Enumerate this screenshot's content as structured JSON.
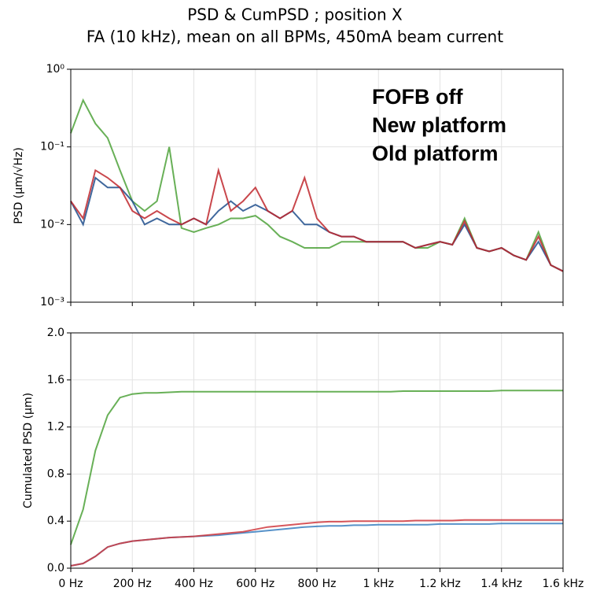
{
  "chart_data": [
    {
      "type": "line",
      "title": "PSD & CumPSD ; position X",
      "subtitle": "FA (10 kHz), mean on all BPMs, 450mA beam current",
      "ylabel": "PSD (µm/√Hz)",
      "log_y": true,
      "grid": true,
      "legend": "upper right",
      "xlim": [
        0,
        1600
      ],
      "ylim": [
        0.001,
        1
      ],
      "yticks": [
        {
          "value": 0.001,
          "label": "10⁻³"
        },
        {
          "value": 0.01,
          "label": "10⁻²"
        },
        {
          "value": 0.1,
          "label": "10⁻¹"
        },
        {
          "value": 1,
          "label": "10⁰"
        }
      ],
      "x": [
        0,
        40,
        80,
        120,
        160,
        200,
        240,
        280,
        320,
        360,
        400,
        440,
        480,
        520,
        560,
        600,
        640,
        680,
        720,
        760,
        800,
        840,
        880,
        920,
        960,
        1000,
        1040,
        1080,
        1120,
        1160,
        1200,
        1240,
        1280,
        1320,
        1360,
        1400,
        1440,
        1480,
        1520,
        1560,
        1600
      ],
      "series": [
        {
          "name": "FOFB off",
          "color": "#4ea23a",
          "values": [
            0.15,
            0.4,
            0.2,
            0.13,
            0.05,
            0.02,
            0.015,
            0.02,
            0.1,
            0.009,
            0.008,
            0.009,
            0.01,
            0.012,
            0.012,
            0.013,
            0.01,
            0.007,
            0.006,
            0.005,
            0.005,
            0.005,
            0.006,
            0.006,
            0.006,
            0.006,
            0.006,
            0.006,
            0.005,
            0.005,
            0.006,
            0.0055,
            0.012,
            0.005,
            0.0045,
            0.005,
            0.004,
            0.0035,
            0.008,
            0.003,
            0.0025
          ]
        },
        {
          "name": "New platform",
          "color": "#1f4e8c",
          "values": [
            0.02,
            0.01,
            0.04,
            0.03,
            0.03,
            0.02,
            0.01,
            0.012,
            0.01,
            0.01,
            0.012,
            0.01,
            0.015,
            0.02,
            0.015,
            0.018,
            0.015,
            0.012,
            0.015,
            0.01,
            0.01,
            0.008,
            0.007,
            0.007,
            0.006,
            0.006,
            0.006,
            0.006,
            0.005,
            0.0055,
            0.006,
            0.0055,
            0.01,
            0.005,
            0.0045,
            0.005,
            0.004,
            0.0035,
            0.006,
            0.003,
            0.0025
          ]
        },
        {
          "name": "Old platform",
          "color": "#c0272d",
          "values": [
            0.02,
            0.012,
            0.05,
            0.04,
            0.03,
            0.015,
            0.012,
            0.015,
            0.012,
            0.01,
            0.012,
            0.01,
            0.05,
            0.015,
            0.02,
            0.03,
            0.015,
            0.012,
            0.015,
            0.04,
            0.012,
            0.008,
            0.007,
            0.007,
            0.006,
            0.006,
            0.006,
            0.006,
            0.005,
            0.0055,
            0.006,
            0.0055,
            0.011,
            0.005,
            0.0045,
            0.005,
            0.004,
            0.0035,
            0.007,
            0.003,
            0.0025
          ]
        }
      ]
    },
    {
      "type": "line",
      "ylabel": "Cumulated PSD (µm)",
      "grid": true,
      "xlim": [
        0,
        1600
      ],
      "ylim": [
        0,
        2
      ],
      "xticks": [
        {
          "value": 0,
          "label": "0 Hz"
        },
        {
          "value": 200,
          "label": "200 Hz"
        },
        {
          "value": 400,
          "label": "400 Hz"
        },
        {
          "value": 600,
          "label": "600 Hz"
        },
        {
          "value": 800,
          "label": "800 Hz"
        },
        {
          "value": 1000,
          "label": "1 kHz"
        },
        {
          "value": 1200,
          "label": "1.2 kHz"
        },
        {
          "value": 1400,
          "label": "1.4 kHz"
        },
        {
          "value": 1600,
          "label": "1.6 kHz"
        }
      ],
      "yticks": [
        {
          "value": 0,
          "label": "0.0"
        },
        0.4,
        0.8,
        1.2,
        1.6,
        {
          "value": 2,
          "label": "2.0"
        }
      ],
      "x": [
        0,
        40,
        80,
        120,
        160,
        200,
        240,
        280,
        320,
        360,
        400,
        440,
        480,
        520,
        560,
        600,
        640,
        680,
        720,
        760,
        800,
        840,
        880,
        920,
        960,
        1000,
        1040,
        1080,
        1120,
        1160,
        1200,
        1240,
        1280,
        1320,
        1360,
        1400,
        1440,
        1480,
        1520,
        1560,
        1600
      ],
      "series": [
        {
          "color": "#4ea23a",
          "values": [
            0.2,
            0.5,
            1.0,
            1.3,
            1.45,
            1.48,
            1.49,
            1.49,
            1.495,
            1.5,
            1.5,
            1.5,
            1.5,
            1.5,
            1.5,
            1.5,
            1.5,
            1.5,
            1.5,
            1.5,
            1.5,
            1.5,
            1.5,
            1.5,
            1.5,
            1.5,
            1.5,
            1.505,
            1.505,
            1.505,
            1.505,
            1.505,
            1.505,
            1.505,
            1.505,
            1.51,
            1.51,
            1.51,
            1.51,
            1.51,
            1.51
          ]
        },
        {
          "color": "#3a7fc0",
          "values": [
            0.02,
            0.04,
            0.1,
            0.18,
            0.21,
            0.23,
            0.24,
            0.25,
            0.26,
            0.265,
            0.27,
            0.275,
            0.28,
            0.29,
            0.3,
            0.31,
            0.32,
            0.33,
            0.34,
            0.35,
            0.355,
            0.36,
            0.36,
            0.365,
            0.365,
            0.37,
            0.37,
            0.37,
            0.37,
            0.37,
            0.375,
            0.375,
            0.375,
            0.375,
            0.375,
            0.38,
            0.38,
            0.38,
            0.38,
            0.38,
            0.38
          ]
        },
        {
          "color": "#d0383e",
          "values": [
            0.02,
            0.04,
            0.1,
            0.18,
            0.21,
            0.23,
            0.24,
            0.25,
            0.26,
            0.265,
            0.27,
            0.28,
            0.29,
            0.3,
            0.31,
            0.33,
            0.35,
            0.36,
            0.37,
            0.38,
            0.39,
            0.395,
            0.395,
            0.4,
            0.4,
            0.4,
            0.4,
            0.4,
            0.405,
            0.405,
            0.405,
            0.405,
            0.41,
            0.41,
            0.41,
            0.41,
            0.41,
            0.41,
            0.41,
            0.41,
            0.41
          ]
        }
      ]
    }
  ]
}
